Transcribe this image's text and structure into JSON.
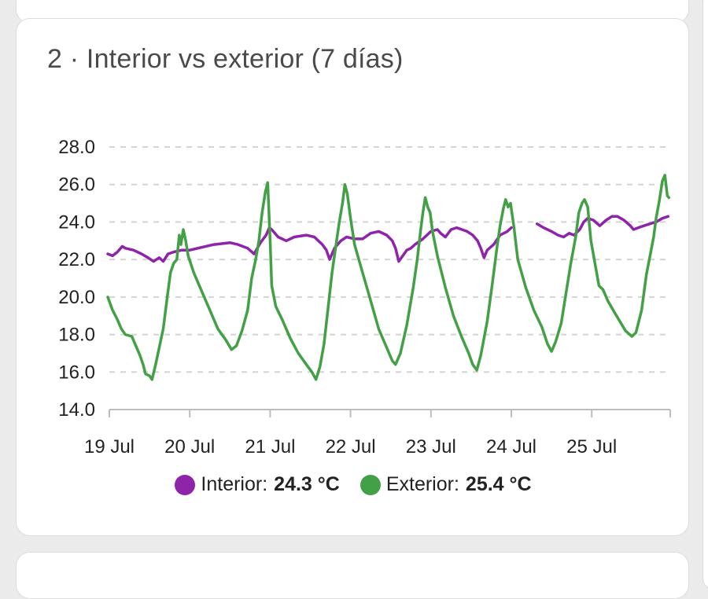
{
  "card": {
    "title": "2 · Interior vs exterior (7 días)"
  },
  "legend": {
    "items": [
      {
        "series": "Interior",
        "label": "Interior:",
        "value": "24.3 °C",
        "color": "#8e24aa"
      },
      {
        "series": "Exterior",
        "label": "Exterior:",
        "value": "25.4 °C",
        "color": "#43a047"
      }
    ]
  },
  "chart_data": {
    "type": "line",
    "title": "2 · Interior vs exterior (7 días)",
    "xlabel": "",
    "ylabel": "",
    "x_ticks": [
      "19 Jul",
      "20 Jul",
      "21 Jul",
      "22 Jul",
      "23 Jul",
      "24 Jul",
      "25 Jul"
    ],
    "x_tick_days": [
      0,
      1,
      2,
      3,
      4,
      5,
      6
    ],
    "xlim_days": [
      0,
      6.97
    ],
    "y_ticks": [
      "14.0",
      "16.0",
      "18.0",
      "20.0",
      "22.0",
      "24.0",
      "26.0",
      "28.0"
    ],
    "ylim": [
      14,
      28
    ],
    "grid": "horizontal dashed",
    "legend_position": "bottom",
    "series": [
      {
        "name": "Interior",
        "color": "#8e24aa",
        "segments": [
          [
            [
              -0.02,
              22.3
            ],
            [
              0.04,
              22.2
            ],
            [
              0.1,
              22.4
            ],
            [
              0.16,
              22.7
            ],
            [
              0.2,
              22.6
            ],
            [
              0.3,
              22.5
            ],
            [
              0.4,
              22.3
            ],
            [
              0.48,
              22.1
            ],
            [
              0.55,
              21.9
            ],
            [
              0.62,
              22.1
            ],
            [
              0.67,
              21.9
            ],
            [
              0.73,
              22.3
            ],
            [
              0.8,
              22.4
            ],
            [
              0.9,
              22.5
            ],
            [
              1.0,
              22.5
            ],
            [
              1.2,
              22.7
            ],
            [
              1.3,
              22.8
            ],
            [
              1.5,
              22.9
            ],
            [
              1.6,
              22.8
            ],
            [
              1.72,
              22.6
            ],
            [
              1.8,
              22.3
            ],
            [
              1.88,
              22.9
            ],
            [
              1.95,
              23.3
            ],
            [
              1.99,
              23.7
            ],
            [
              2.02,
              23.6
            ],
            [
              2.1,
              23.2
            ],
            [
              2.2,
              23.0
            ],
            [
              2.3,
              23.2
            ],
            [
              2.45,
              23.3
            ],
            [
              2.55,
              23.2
            ],
            [
              2.6,
              23.0
            ],
            [
              2.65,
              22.8
            ],
            [
              2.7,
              22.5
            ],
            [
              2.74,
              22.0
            ],
            [
              2.8,
              22.6
            ],
            [
              2.88,
              23.0
            ],
            [
              2.95,
              23.2
            ],
            [
              3.05,
              23.1
            ],
            [
              3.15,
              23.1
            ],
            [
              3.25,
              23.4
            ],
            [
              3.35,
              23.5
            ],
            [
              3.45,
              23.3
            ],
            [
              3.52,
              23.0
            ],
            [
              3.56,
              22.6
            ],
            [
              3.6,
              21.9
            ],
            [
              3.65,
              22.2
            ],
            [
              3.7,
              22.5
            ],
            [
              3.75,
              22.6
            ],
            [
              3.8,
              22.8
            ],
            [
              3.9,
              23.1
            ],
            [
              4.0,
              23.5
            ],
            [
              4.08,
              23.6
            ],
            [
              4.12,
              23.4
            ],
            [
              4.18,
              23.2
            ],
            [
              4.25,
              23.6
            ],
            [
              4.32,
              23.7
            ],
            [
              4.45,
              23.5
            ],
            [
              4.52,
              23.3
            ],
            [
              4.58,
              23.0
            ],
            [
              4.62,
              22.6
            ],
            [
              4.66,
              22.1
            ],
            [
              4.7,
              22.5
            ],
            [
              4.78,
              22.8
            ],
            [
              4.86,
              23.3
            ],
            [
              4.95,
              23.5
            ],
            [
              5.0,
              23.7
            ]
          ],
          [
            [
              5.32,
              23.9
            ],
            [
              5.4,
              23.7
            ],
            [
              5.5,
              23.5
            ],
            [
              5.58,
              23.3
            ],
            [
              5.65,
              23.2
            ],
            [
              5.72,
              23.4
            ],
            [
              5.78,
              23.3
            ],
            [
              5.85,
              23.6
            ],
            [
              5.9,
              24.0
            ],
            [
              5.95,
              24.2
            ],
            [
              6.02,
              24.1
            ],
            [
              6.1,
              23.8
            ],
            [
              6.18,
              24.1
            ],
            [
              6.25,
              24.3
            ],
            [
              6.32,
              24.3
            ],
            [
              6.4,
              24.1
            ],
            [
              6.48,
              23.8
            ],
            [
              6.52,
              23.6
            ],
            [
              6.58,
              23.7
            ],
            [
              6.65,
              23.8
            ],
            [
              6.72,
              23.9
            ],
            [
              6.8,
              24.0
            ],
            [
              6.88,
              24.2
            ],
            [
              6.95,
              24.3
            ]
          ]
        ]
      },
      {
        "name": "Exterior",
        "color": "#43a047",
        "segments": [
          [
            [
              -0.02,
              20.0
            ],
            [
              0.04,
              19.3
            ],
            [
              0.1,
              18.8
            ],
            [
              0.15,
              18.3
            ],
            [
              0.2,
              18.0
            ],
            [
              0.28,
              17.9
            ],
            [
              0.33,
              17.4
            ],
            [
              0.38,
              16.9
            ],
            [
              0.42,
              16.4
            ],
            [
              0.45,
              15.9
            ],
            [
              0.5,
              15.8
            ],
            [
              0.53,
              15.6
            ],
            [
              0.57,
              16.3
            ],
            [
              0.62,
              17.3
            ],
            [
              0.67,
              18.3
            ],
            [
              0.72,
              20.0
            ],
            [
              0.76,
              21.3
            ],
            [
              0.8,
              21.8
            ],
            [
              0.84,
              22.0
            ],
            [
              0.87,
              23.3
            ],
            [
              0.89,
              22.8
            ],
            [
              0.92,
              23.6
            ],
            [
              0.95,
              23.0
            ],
            [
              0.98,
              22.2
            ],
            [
              1.05,
              21.3
            ],
            [
              1.15,
              20.3
            ],
            [
              1.25,
              19.3
            ],
            [
              1.35,
              18.3
            ],
            [
              1.45,
              17.7
            ],
            [
              1.52,
              17.2
            ],
            [
              1.58,
              17.4
            ],
            [
              1.65,
              18.2
            ],
            [
              1.72,
              19.3
            ],
            [
              1.77,
              21.0
            ],
            [
              1.82,
              22.0
            ],
            [
              1.86,
              23.0
            ],
            [
              1.9,
              24.5
            ],
            [
              1.94,
              25.6
            ],
            [
              1.97,
              26.1
            ],
            [
              2.0,
              23.0
            ],
            [
              2.02,
              20.6
            ],
            [
              2.07,
              19.5
            ],
            [
              2.15,
              18.8
            ],
            [
              2.25,
              17.8
            ],
            [
              2.35,
              17.0
            ],
            [
              2.45,
              16.4
            ],
            [
              2.52,
              16.0
            ],
            [
              2.57,
              15.6
            ],
            [
              2.62,
              16.3
            ],
            [
              2.67,
              17.5
            ],
            [
              2.72,
              19.4
            ],
            [
              2.77,
              21.3
            ],
            [
              2.82,
              22.8
            ],
            [
              2.86,
              24.0
            ],
            [
              2.9,
              25.0
            ],
            [
              2.93,
              26.0
            ],
            [
              2.96,
              25.5
            ],
            [
              3.0,
              24.2
            ],
            [
              3.05,
              22.8
            ],
            [
              3.15,
              21.3
            ],
            [
              3.25,
              19.8
            ],
            [
              3.35,
              18.3
            ],
            [
              3.45,
              17.3
            ],
            [
              3.52,
              16.6
            ],
            [
              3.56,
              16.4
            ],
            [
              3.62,
              17.0
            ],
            [
              3.7,
              18.5
            ],
            [
              3.78,
              20.5
            ],
            [
              3.83,
              22.0
            ],
            [
              3.87,
              23.5
            ],
            [
              3.9,
              24.5
            ],
            [
              3.93,
              25.3
            ],
            [
              3.96,
              24.8
            ],
            [
              3.99,
              24.5
            ],
            [
              4.02,
              23.5
            ],
            [
              4.08,
              22.2
            ],
            [
              4.18,
              20.5
            ],
            [
              4.28,
              19.0
            ],
            [
              4.38,
              17.9
            ],
            [
              4.47,
              17.0
            ],
            [
              4.52,
              16.4
            ],
            [
              4.57,
              16.1
            ],
            [
              4.62,
              16.9
            ],
            [
              4.7,
              18.7
            ],
            [
              4.76,
              20.6
            ],
            [
              4.82,
              22.6
            ],
            [
              4.86,
              23.8
            ],
            [
              4.9,
              24.7
            ],
            [
              4.93,
              25.2
            ],
            [
              4.96,
              24.8
            ],
            [
              4.99,
              25.0
            ],
            [
              5.03,
              23.8
            ],
            [
              5.08,
              22.0
            ],
            [
              5.18,
              20.5
            ],
            [
              5.28,
              19.3
            ],
            [
              5.38,
              18.4
            ],
            [
              5.45,
              17.5
            ],
            [
              5.5,
              17.1
            ],
            [
              5.55,
              17.6
            ],
            [
              5.62,
              18.6
            ],
            [
              5.68,
              20.2
            ],
            [
              5.74,
              21.8
            ],
            [
              5.8,
              23.2
            ],
            [
              5.84,
              24.5
            ],
            [
              5.88,
              25.0
            ],
            [
              5.91,
              25.2
            ],
            [
              5.95,
              24.8
            ],
            [
              5.99,
              23.0
            ],
            [
              6.04,
              21.8
            ],
            [
              6.09,
              20.6
            ],
            [
              6.14,
              20.4
            ],
            [
              6.2,
              19.8
            ],
            [
              6.28,
              19.2
            ],
            [
              6.35,
              18.7
            ],
            [
              6.42,
              18.2
            ],
            [
              6.5,
              17.9
            ],
            [
              6.55,
              18.1
            ],
            [
              6.62,
              19.3
            ],
            [
              6.68,
              21.2
            ],
            [
              6.73,
              22.3
            ],
            [
              6.77,
              23.2
            ],
            [
              6.8,
              24.2
            ],
            [
              6.84,
              25.1
            ],
            [
              6.88,
              26.2
            ],
            [
              6.91,
              26.5
            ],
            [
              6.94,
              25.4
            ],
            [
              6.96,
              25.3
            ]
          ]
        ]
      }
    ]
  }
}
